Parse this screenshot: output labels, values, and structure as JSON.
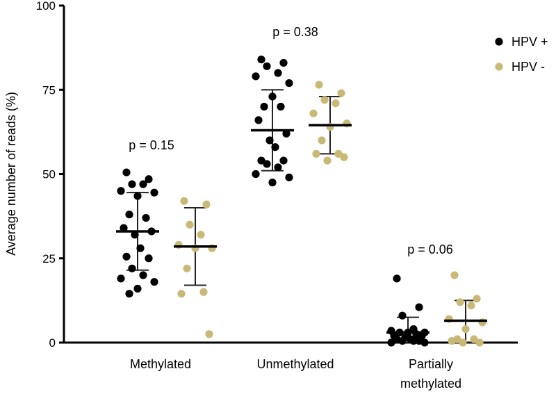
{
  "chart_data": {
    "type": "scatter",
    "ylabel": "Average number of reads (%)",
    "ylim": [
      0,
      100
    ],
    "yticks": [
      0,
      25,
      50,
      75,
      100
    ],
    "categories": [
      {
        "id": "methylated",
        "lines": [
          "Methylated"
        ]
      },
      {
        "id": "unmethylated",
        "lines": [
          "Unmethylated"
        ]
      },
      {
        "id": "partial",
        "lines": [
          "Partially",
          "methylated"
        ]
      }
    ],
    "p_values": [
      "p = 0.15",
      "p = 0.38",
      "p = 0.06"
    ],
    "series": [
      {
        "name": "HPV +",
        "color": "#000000",
        "groups": [
          {
            "category": "methylated",
            "mean": 33,
            "sd_low": 21.5,
            "sd_high": 44.5,
            "points": [
              50.5,
              48.5,
              47,
              47,
              45,
              44.5,
              43.5,
              38,
              37,
              34,
              33,
              32,
              28,
              25.5,
              25,
              22,
              20,
              19,
              18,
              16,
              14.5
            ]
          },
          {
            "category": "unmethylated",
            "mean": 63,
            "sd_low": 51,
            "sd_high": 75,
            "points": [
              84,
              83,
              82,
              80,
              79,
              77,
              73,
              70,
              70,
              66,
              62,
              60,
              58,
              54,
              54,
              53,
              52,
              50,
              49,
              47.5
            ]
          },
          {
            "category": "partial",
            "mean": 3,
            "sd_low": 0,
            "sd_high": 7.5,
            "points": [
              19,
              10.5,
              8,
              4,
              3.5,
              3,
              3,
              3,
              2.5,
              2,
              2,
              1.5,
              1,
              1,
              0.5,
              0.5,
              0.5,
              0,
              0
            ]
          }
        ]
      },
      {
        "name": "HPV -",
        "color": "#C9B977",
        "groups": [
          {
            "category": "methylated",
            "mean": 28.5,
            "sd_low": 17,
            "sd_high": 40,
            "points": [
              42,
              41,
              35,
              32,
              29,
              28,
              28,
              22,
              15,
              14.5,
              2.5
            ]
          },
          {
            "category": "unmethylated",
            "mean": 64.5,
            "sd_low": 56,
            "sd_high": 73,
            "points": [
              76.5,
              74,
              72,
              71,
              68,
              65,
              64,
              60,
              56,
              56,
              55,
              54
            ]
          },
          {
            "category": "partial",
            "mean": 6.5,
            "sd_low": 0,
            "sd_high": 12.5,
            "points": [
              20,
              13,
              12,
              11,
              7,
              6,
              4,
              1,
              1,
              0.5,
              0,
              0
            ]
          }
        ]
      }
    ]
  }
}
